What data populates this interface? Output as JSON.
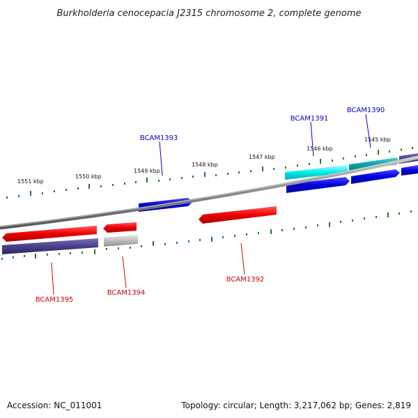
{
  "title": "Burkholderia cenocepacia J2315 chromosome 2, complete genome",
  "footer": {
    "accession": "Accession: NC_011001",
    "summary": "Topology: circular; Length: 3,217,062 bp; Genes: 2,819"
  },
  "kbp_labels": [
    "1551 kbp",
    "1550 kbp",
    "1549 kbp",
    "1548 kbp",
    "1547 kbp",
    "1546 kbp",
    "1545 kbp"
  ],
  "genes": [
    {
      "name": "BCAM1390",
      "strand": "forward",
      "color": "#0000bb"
    },
    {
      "name": "BCAM1391",
      "strand": "forward",
      "color": "#0000bb"
    },
    {
      "name": "BCAM1392",
      "strand": "reverse",
      "color": "#cc0000"
    },
    {
      "name": "BCAM1393",
      "strand": "forward",
      "color": "#0000bb"
    },
    {
      "name": "BCAM1394",
      "strand": "reverse",
      "color": "#cc0000"
    },
    {
      "name": "BCAM1395",
      "strand": "reverse",
      "color": "#cc0000"
    }
  ],
  "colors": {
    "backbone": "#888888",
    "ticks": "#1a7a1a",
    "forward_cds": "#0000ee",
    "reverse_cds": "#ee0000",
    "cyan_feature": "#00e5e5",
    "teal_feature": "#00aaaa",
    "purple_feature": "#4a3f8c",
    "grey_feature": "#bbbbbb"
  }
}
